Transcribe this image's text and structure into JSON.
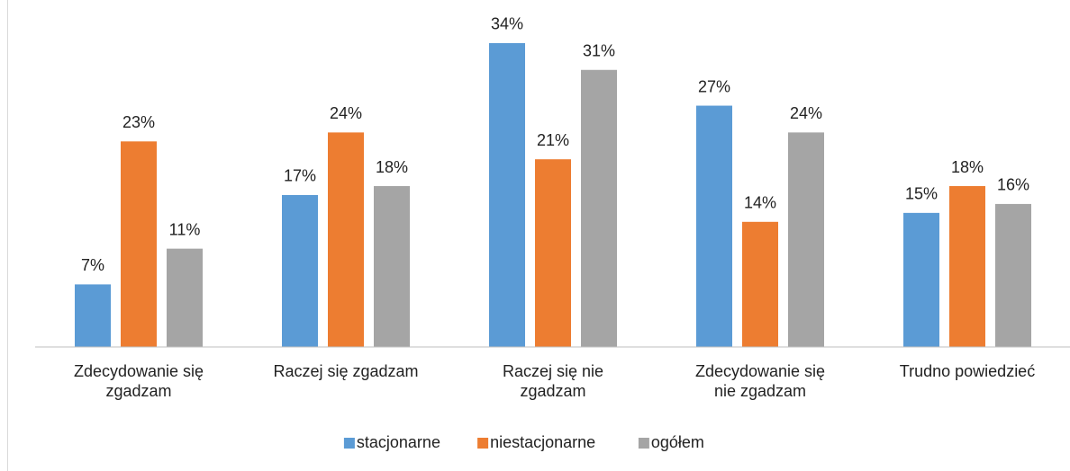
{
  "chart_data": {
    "type": "bar",
    "categories": [
      "Zdecydowanie się zgadzam",
      "Raczej się zgadzam",
      "Raczej się nie zgadzam",
      "Zdecydowanie się nie zgadzam",
      "Trudno powiedzieć"
    ],
    "series": [
      {
        "name": "stacjonarne",
        "color": "#5b9bd5",
        "values": [
          7,
          17,
          34,
          27,
          15
        ],
        "value_labels": [
          "7%",
          "17%",
          "34%",
          "27%",
          "15%"
        ]
      },
      {
        "name": "niestacjonarne",
        "color": "#ed7d31",
        "values": [
          23,
          24,
          21,
          14,
          18
        ],
        "value_labels": [
          "23%",
          "24%",
          "21%",
          "14%",
          "18%"
        ]
      },
      {
        "name": "ogółem",
        "color": "#a5a5a5",
        "values": [
          11,
          18,
          31,
          24,
          16
        ],
        "value_labels": [
          "11%",
          "18%",
          "31%",
          "24%",
          "16%"
        ]
      }
    ],
    "ylim": [
      0,
      35
    ],
    "legend": "bottom"
  }
}
